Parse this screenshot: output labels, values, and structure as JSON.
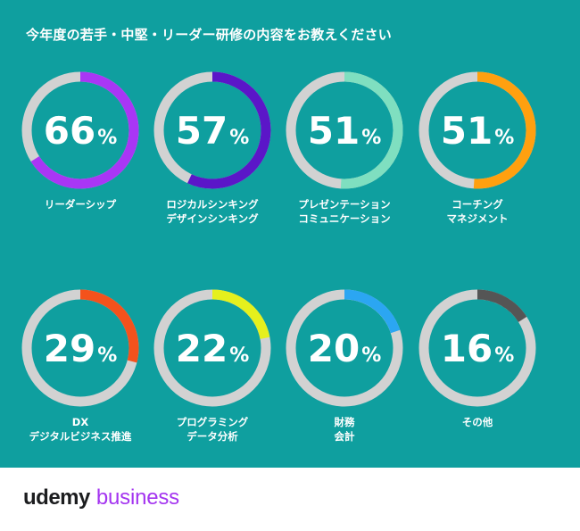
{
  "chart_data": {
    "type": "pie",
    "title": "今年度の若手・中堅・リーダー研修の内容をお教えください",
    "unit": "%",
    "track_color": "#d2d2d2",
    "background": "#0f9f9f",
    "items": [
      {
        "value": 66,
        "label": [
          "リーダーシップ"
        ],
        "color": "#a936f5"
      },
      {
        "value": 57,
        "label": [
          "ロジカルシンキング",
          "デザインシンキング"
        ],
        "color": "#5b16c8"
      },
      {
        "value": 51,
        "label": [
          "プレゼンテーション",
          "コミュニケーション"
        ],
        "color": "#7fdfc0"
      },
      {
        "value": 51,
        "label": [
          "コーチング",
          "マネジメント"
        ],
        "color": "#ffa00f"
      },
      {
        "value": 29,
        "label": [
          "DX",
          "デジタルビジネス推進"
        ],
        "color": "#f4521c"
      },
      {
        "value": 22,
        "label": [
          "プログラミング",
          "データ分析"
        ],
        "color": "#e5f01d"
      },
      {
        "value": 20,
        "label": [
          "財務",
          "会計"
        ],
        "color": "#2ba6f2"
      },
      {
        "value": 16,
        "label": [
          "その他"
        ],
        "color": "#555555"
      }
    ]
  },
  "footer": {
    "logo_text_1": "udemy",
    "logo_text_2": "business",
    "logo_color_1": "#1c1d1f",
    "logo_color_2": "#a435f0"
  }
}
